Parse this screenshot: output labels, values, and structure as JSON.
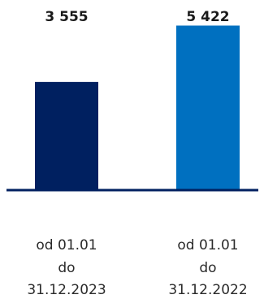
{
  "chart_data": {
    "type": "bar",
    "title": "",
    "xlabel": "",
    "ylabel": "",
    "categories": [
      [
        "od 01.01",
        "do",
        "31.12.2023"
      ],
      [
        "od 01.01",
        "do",
        "31.12.2022"
      ]
    ],
    "values": [
      3555,
      5422
    ],
    "value_labels": [
      "3 555",
      "5 422"
    ],
    "colors": [
      "#002060",
      "#0070C0"
    ],
    "axis_color": "#002060",
    "ylim": [
      0,
      6000
    ],
    "grid": false,
    "legend": "none"
  }
}
